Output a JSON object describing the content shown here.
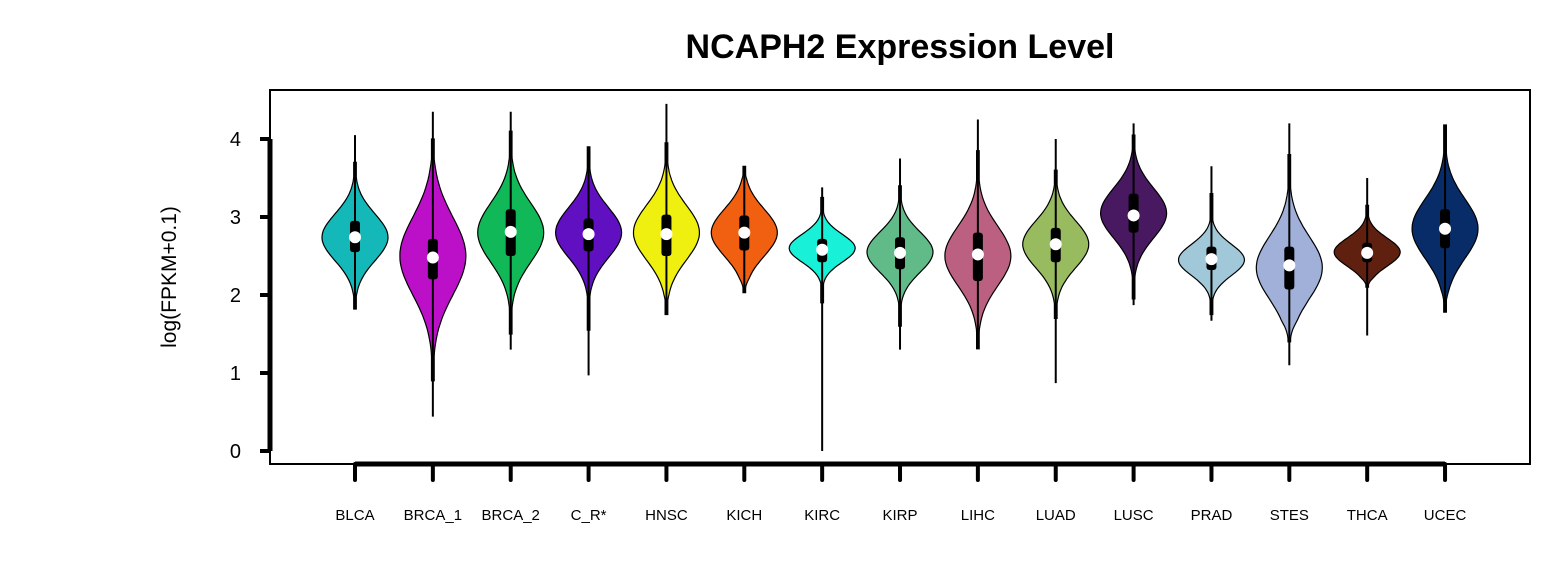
{
  "chart_data": {
    "type": "violin",
    "title": "NCAPH2 Expression Level",
    "xlabel": "",
    "ylabel": "log(FPKM+0.1)",
    "ylim": [
      0,
      4.4
    ],
    "yticks": [
      0,
      1,
      2,
      3,
      4
    ],
    "grid": false,
    "legend": "none",
    "categories": [
      "BLCA",
      "BRCA_1",
      "BRCA_2",
      "C_R*",
      "HNSC",
      "KICH",
      "KIRC",
      "KIRP",
      "LIHC",
      "LUAD",
      "LUSC",
      "PRAD",
      "STES",
      "THCA",
      "UCEC"
    ],
    "colors": [
      "#14B8B8",
      "#BB10C8",
      "#10B858",
      "#6010C0",
      "#F0F010",
      "#F06010",
      "#18F0D8",
      "#60BB88",
      "#BB6080",
      "#98BB60",
      "#481860",
      "#A0C8D8",
      "#A0B0D8",
      "#602010",
      "#082C68"
    ],
    "series": [
      {
        "name": "BLCA",
        "min": 1.82,
        "q1": 2.55,
        "median": 2.74,
        "q3": 2.95,
        "max": 4.05,
        "vmin": 1.82,
        "vmax": 3.7,
        "mode": 2.74,
        "spread": 0.3
      },
      {
        "name": "BRCA_1",
        "min": 0.44,
        "q1": 2.2,
        "median": 2.48,
        "q3": 2.72,
        "max": 4.35,
        "vmin": 0.9,
        "vmax": 4.0,
        "mode": 2.5,
        "spread": 0.5
      },
      {
        "name": "BRCA_2",
        "min": 1.3,
        "q1": 2.5,
        "median": 2.81,
        "q3": 3.1,
        "max": 4.35,
        "vmin": 1.5,
        "vmax": 4.1,
        "mode": 2.8,
        "spread": 0.38
      },
      {
        "name": "C_R*",
        "min": 0.97,
        "q1": 2.56,
        "median": 2.78,
        "q3": 2.98,
        "max": 3.9,
        "vmin": 1.55,
        "vmax": 3.9,
        "mode": 2.8,
        "spread": 0.32
      },
      {
        "name": "HNSC",
        "min": 1.75,
        "q1": 2.5,
        "median": 2.78,
        "q3": 3.03,
        "max": 4.45,
        "vmin": 1.75,
        "vmax": 3.95,
        "mode": 2.8,
        "spread": 0.35
      },
      {
        "name": "KICH",
        "min": 2.03,
        "q1": 2.57,
        "median": 2.8,
        "q3": 3.02,
        "max": 3.65,
        "vmin": 2.03,
        "vmax": 3.65,
        "mode": 2.8,
        "spread": 0.3
      },
      {
        "name": "KIRC",
        "min": 0.0,
        "q1": 2.42,
        "median": 2.58,
        "q3": 2.72,
        "max": 3.38,
        "vmin": 1.9,
        "vmax": 3.25,
        "mode": 2.6,
        "spread": 0.18
      },
      {
        "name": "KIRP",
        "min": 1.3,
        "q1": 2.33,
        "median": 2.54,
        "q3": 2.74,
        "max": 3.75,
        "vmin": 1.6,
        "vmax": 3.4,
        "mode": 2.55,
        "spread": 0.26
      },
      {
        "name": "LIHC",
        "min": 1.31,
        "q1": 2.18,
        "median": 2.52,
        "q3": 2.8,
        "max": 4.25,
        "vmin": 1.31,
        "vmax": 3.85,
        "mode": 2.5,
        "spread": 0.38
      },
      {
        "name": "LUAD",
        "min": 0.87,
        "q1": 2.42,
        "median": 2.65,
        "q3": 2.86,
        "max": 4.0,
        "vmin": 1.7,
        "vmax": 3.6,
        "mode": 2.65,
        "spread": 0.3
      },
      {
        "name": "LUSC",
        "min": 1.87,
        "q1": 2.8,
        "median": 3.02,
        "q3": 3.3,
        "max": 4.2,
        "vmin": 1.95,
        "vmax": 4.05,
        "mode": 3.05,
        "spread": 0.32
      },
      {
        "name": "PRAD",
        "min": 1.67,
        "q1": 2.32,
        "median": 2.46,
        "q3": 2.62,
        "max": 3.65,
        "vmin": 1.75,
        "vmax": 3.3,
        "mode": 2.45,
        "spread": 0.2
      },
      {
        "name": "STES",
        "min": 1.1,
        "q1": 2.07,
        "median": 2.38,
        "q3": 2.62,
        "max": 4.2,
        "vmin": 1.4,
        "vmax": 3.8,
        "mode": 2.35,
        "spread": 0.4
      },
      {
        "name": "THCA",
        "min": 1.48,
        "q1": 2.42,
        "median": 2.54,
        "q3": 2.67,
        "max": 3.5,
        "vmin": 2.1,
        "vmax": 3.15,
        "mode": 2.55,
        "spread": 0.18
      },
      {
        "name": "UCEC",
        "min": 1.78,
        "q1": 2.6,
        "median": 2.85,
        "q3": 3.1,
        "max": 4.18,
        "vmin": 1.78,
        "vmax": 4.18,
        "mode": 2.85,
        "spread": 0.38
      }
    ]
  }
}
